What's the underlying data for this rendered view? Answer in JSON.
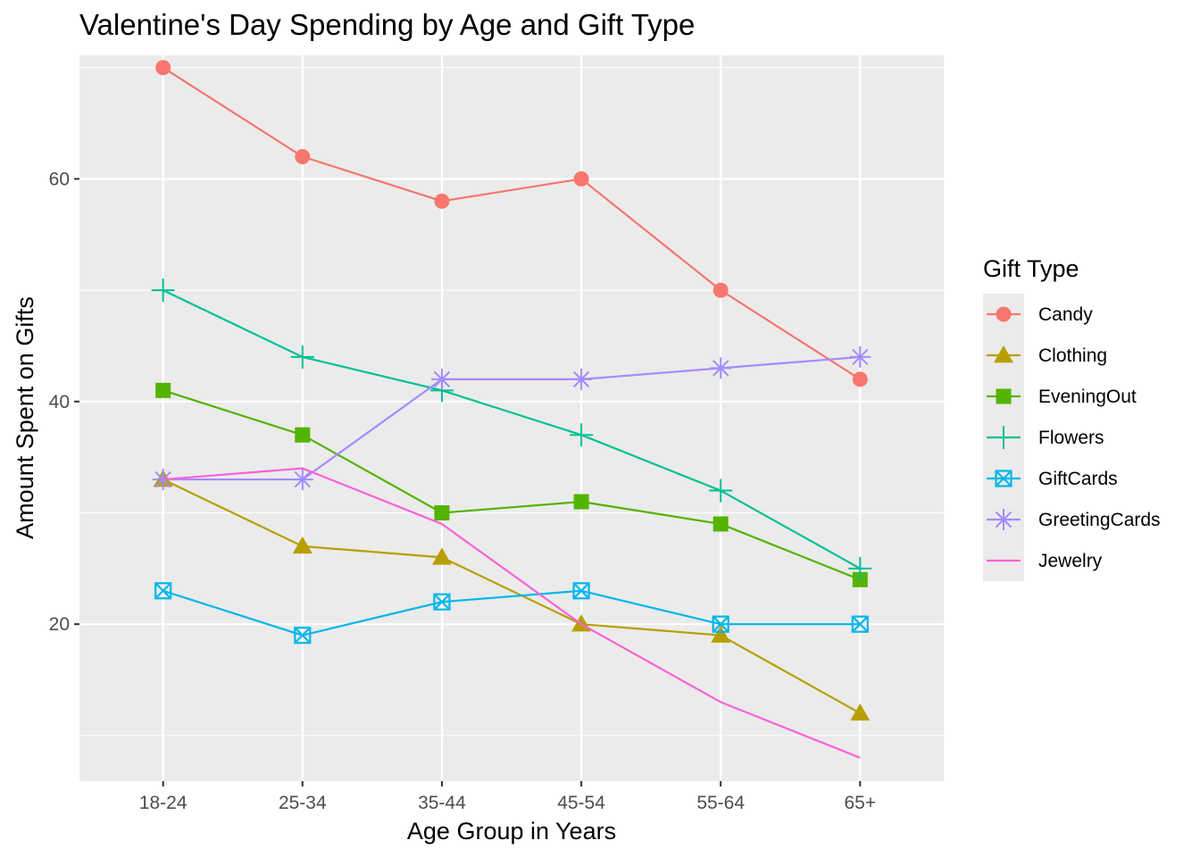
{
  "chart_data": {
    "type": "line",
    "title": "Valentine's Day Spending by Age and Gift Type",
    "xlabel": "Age Group in Years",
    "ylabel": "Amount Spent on Gifts",
    "categories": [
      "18-24",
      "25-34",
      "35-44",
      "45-54",
      "55-64",
      "65+"
    ],
    "ylim": [
      5.9,
      71.1
    ],
    "yticks": [
      20,
      40,
      60
    ],
    "grid": true,
    "legend": {
      "title": "Gift Type",
      "position": "right"
    },
    "series": [
      {
        "name": "Candy",
        "color": "#F8766D",
        "marker": "circle",
        "values": [
          70,
          62,
          58,
          60,
          50,
          42
        ]
      },
      {
        "name": "Clothing",
        "color": "#B79F00",
        "marker": "triangle",
        "values": [
          33,
          27,
          26,
          20,
          19,
          12
        ]
      },
      {
        "name": "EveningOut",
        "color": "#53B400",
        "marker": "square",
        "values": [
          41,
          37,
          30,
          31,
          29,
          24
        ]
      },
      {
        "name": "Flowers",
        "color": "#00C094",
        "marker": "plus",
        "values": [
          50,
          44,
          41,
          37,
          32,
          25
        ]
      },
      {
        "name": "GiftCards",
        "color": "#00B6EB",
        "marker": "boxed-x",
        "values": [
          23,
          19,
          22,
          23,
          20,
          20
        ]
      },
      {
        "name": "GreetingCards",
        "color": "#A58AFF",
        "marker": "asterisk",
        "values": [
          33,
          33,
          42,
          42,
          43,
          44
        ]
      },
      {
        "name": "Jewelry",
        "color": "#FB61D7",
        "marker": "none",
        "values": [
          33,
          34,
          29,
          20,
          13,
          8
        ]
      }
    ]
  }
}
